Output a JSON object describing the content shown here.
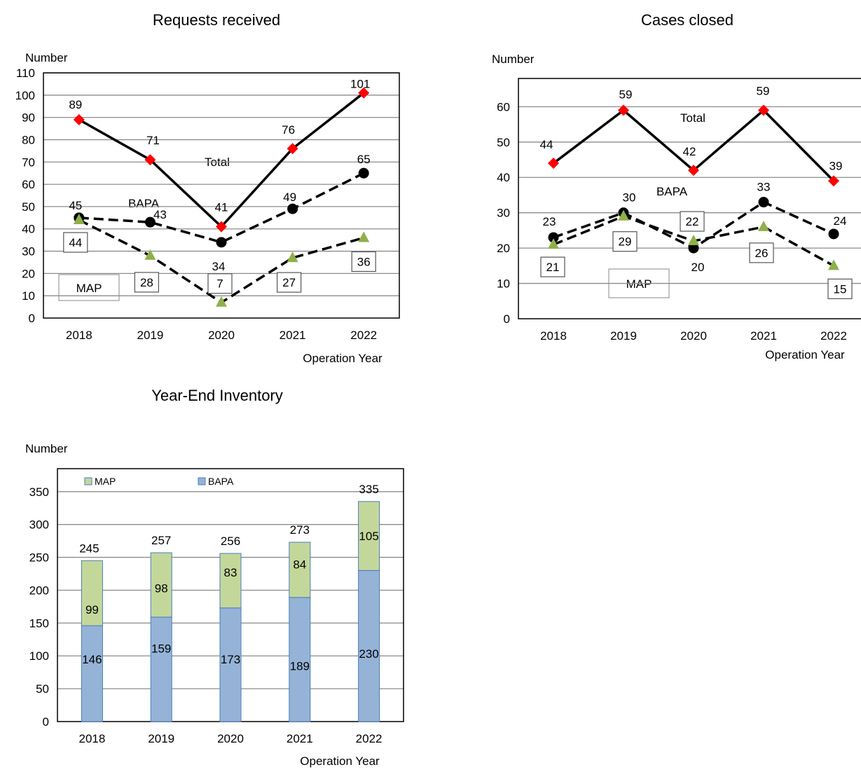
{
  "chart_data": [
    {
      "type": "line",
      "title": "Requests received",
      "ylabel": "Number",
      "xlabel": "Operation Year",
      "ylim": [
        0,
        110
      ],
      "ytick_step": 10,
      "categories": [
        "2018",
        "2019",
        "2020",
        "2021",
        "2022"
      ],
      "grid": true,
      "series": [
        {
          "name": "Total",
          "values": [
            89,
            71,
            41,
            76,
            101
          ],
          "color": "#000000",
          "marker_color": "#ff0000",
          "marker": "diamond",
          "dash": "solid"
        },
        {
          "name": "BAPA",
          "values": [
            45,
            43,
            34,
            49,
            65
          ],
          "color": "#000000",
          "marker_color": "#000000",
          "marker": "circle",
          "dash": "dashed"
        },
        {
          "name": "MAP",
          "values": [
            44,
            28,
            7,
            27,
            36
          ],
          "color": "#000000",
          "marker_color": "#8fb04a",
          "marker": "triangle",
          "dash": "dashed"
        }
      ]
    },
    {
      "type": "line",
      "title": "Cases closed",
      "ylabel": "Number",
      "xlabel": "Operation Year",
      "ylim": [
        0,
        68
      ],
      "ytick_step": 10,
      "yticks_max": 60,
      "categories": [
        "2018",
        "2019",
        "2020",
        "2021",
        "2022"
      ],
      "grid": true,
      "series": [
        {
          "name": "Total",
          "values": [
            44,
            59,
            42,
            59,
            39
          ],
          "color": "#000000",
          "marker_color": "#ff0000",
          "marker": "diamond",
          "dash": "solid"
        },
        {
          "name": "BAPA",
          "values": [
            23,
            30,
            20,
            33,
            24
          ],
          "color": "#000000",
          "marker_color": "#000000",
          "marker": "circle",
          "dash": "dashed"
        },
        {
          "name": "MAP",
          "values": [
            21,
            29,
            22,
            26,
            15
          ],
          "color": "#000000",
          "marker_color": "#8fb04a",
          "marker": "triangle",
          "dash": "dashed"
        }
      ]
    },
    {
      "type": "bar",
      "stacked": true,
      "title": "Year-End Inventory",
      "ylabel": "Number",
      "xlabel": "Operation Year",
      "ylim": [
        0,
        385
      ],
      "ytick_step": 50,
      "yticks_max": 350,
      "categories": [
        "2018",
        "2019",
        "2020",
        "2021",
        "2022"
      ],
      "totals": [
        245,
        257,
        256,
        273,
        335
      ],
      "legend": "top-left",
      "grid": true,
      "series": [
        {
          "name": "BAPA",
          "values": [
            146,
            159,
            173,
            189,
            230
          ],
          "color": "#95b3d7"
        },
        {
          "name": "MAP",
          "values": [
            99,
            98,
            83,
            84,
            105
          ],
          "color": "#c4d79b"
        }
      ]
    }
  ]
}
